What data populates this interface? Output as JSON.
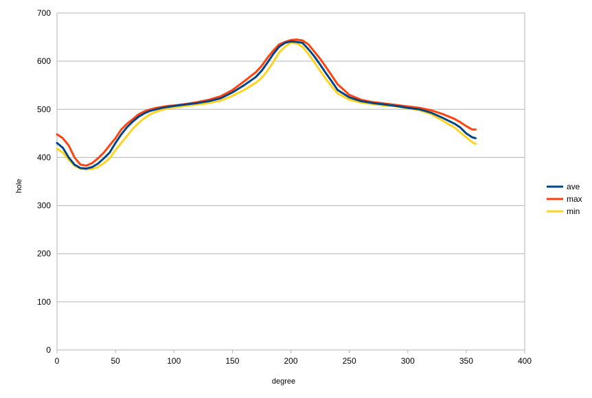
{
  "chart_data": {
    "type": "line",
    "xlabel": "degree",
    "ylabel": "hole",
    "xlim": [
      0,
      400
    ],
    "ylim": [
      0,
      700
    ],
    "xticks": [
      0,
      50,
      100,
      150,
      200,
      250,
      300,
      350,
      400
    ],
    "yticks": [
      0,
      100,
      200,
      300,
      400,
      500,
      600,
      700
    ],
    "grid": "horizontal",
    "legend_position": "right",
    "series": [
      {
        "name": "ave",
        "color": "#004586",
        "x": [
          0,
          5,
          10,
          15,
          20,
          25,
          30,
          35,
          40,
          45,
          50,
          55,
          60,
          65,
          70,
          75,
          80,
          85,
          90,
          95,
          100,
          110,
          120,
          130,
          140,
          150,
          160,
          170,
          175,
          180,
          185,
          190,
          195,
          200,
          205,
          210,
          215,
          220,
          225,
          230,
          235,
          240,
          250,
          260,
          270,
          280,
          290,
          300,
          310,
          320,
          330,
          340,
          345,
          350,
          355,
          358
        ],
        "values": [
          430,
          420,
          400,
          385,
          378,
          377,
          380,
          387,
          398,
          410,
          430,
          448,
          463,
          475,
          485,
          492,
          497,
          500,
          503,
          505,
          507,
          510,
          513,
          517,
          523,
          535,
          550,
          567,
          580,
          597,
          615,
          630,
          638,
          641,
          640,
          638,
          625,
          610,
          593,
          575,
          558,
          540,
          525,
          517,
          513,
          510,
          507,
          503,
          500,
          493,
          482,
          470,
          462,
          450,
          442,
          440
        ]
      },
      {
        "name": "max",
        "color": "#ff420e",
        "x": [
          0,
          5,
          10,
          15,
          20,
          25,
          30,
          35,
          40,
          45,
          50,
          55,
          60,
          65,
          70,
          75,
          80,
          85,
          90,
          95,
          100,
          110,
          120,
          130,
          140,
          150,
          160,
          170,
          175,
          180,
          185,
          190,
          195,
          200,
          205,
          210,
          215,
          220,
          225,
          230,
          235,
          240,
          250,
          260,
          270,
          280,
          290,
          300,
          310,
          320,
          330,
          340,
          345,
          350,
          355,
          358
        ],
        "values": [
          448,
          440,
          425,
          400,
          385,
          383,
          388,
          398,
          410,
          425,
          440,
          458,
          470,
          480,
          490,
          496,
          500,
          503,
          505,
          507,
          508,
          511,
          515,
          520,
          527,
          540,
          558,
          577,
          590,
          607,
          622,
          635,
          640,
          644,
          645,
          643,
          635,
          620,
          605,
          588,
          570,
          552,
          530,
          520,
          515,
          512,
          509,
          506,
          503,
          498,
          490,
          480,
          473,
          465,
          458,
          458
        ]
      },
      {
        "name": "min",
        "color": "#ffd320",
        "x": [
          0,
          5,
          10,
          15,
          20,
          25,
          30,
          35,
          40,
          45,
          50,
          55,
          60,
          65,
          70,
          75,
          80,
          85,
          90,
          95,
          100,
          110,
          120,
          130,
          140,
          150,
          160,
          170,
          175,
          180,
          185,
          190,
          195,
          200,
          205,
          210,
          215,
          220,
          225,
          230,
          235,
          240,
          250,
          260,
          270,
          280,
          290,
          300,
          310,
          320,
          330,
          340,
          345,
          350,
          355,
          358
        ],
        "values": [
          418,
          410,
          395,
          383,
          377,
          375,
          376,
          380,
          388,
          398,
          415,
          430,
          445,
          460,
          472,
          482,
          490,
          495,
          499,
          502,
          504,
          507,
          510,
          513,
          518,
          528,
          540,
          555,
          565,
          580,
          598,
          618,
          630,
          638,
          637,
          630,
          615,
          598,
          580,
          563,
          547,
          533,
          520,
          514,
          511,
          508,
          506,
          502,
          498,
          490,
          476,
          462,
          452,
          442,
          432,
          428
        ]
      }
    ]
  }
}
